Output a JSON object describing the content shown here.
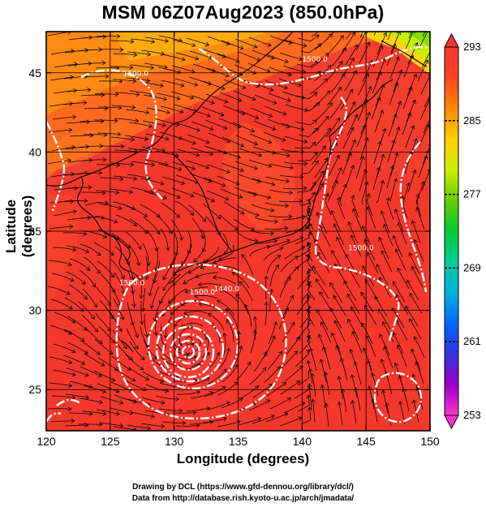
{
  "title": "MSM 06Z07Aug2023 (850.0hPa)",
  "x_axis": {
    "label": "Longitude (degrees)",
    "ticks": [
      "120",
      "125",
      "130",
      "135",
      "140",
      "145",
      "150"
    ],
    "range": [
      120,
      150
    ]
  },
  "y_axis": {
    "label": "Latitude  (degrees)",
    "ticks": [
      "25",
      "30",
      "35",
      "40",
      "45"
    ],
    "range": [
      22.4,
      47.6
    ]
  },
  "colorbar": {
    "max_label": "293",
    "min_label": "253",
    "tick_labels": [
      "285",
      "277",
      "269",
      "261"
    ],
    "range": [
      253,
      293
    ],
    "colors": [
      "#ff33cc",
      "#9900cc",
      "#3333dd",
      "#0066ff",
      "#00b3d9",
      "#00cc99",
      "#00cc33",
      "#66cc00",
      "#ccee00",
      "#ffcc00",
      "#ff8800",
      "#ff4422",
      "#ff3333"
    ]
  },
  "contour_labels": [
    {
      "text": "1500.0",
      "lon": 127.0,
      "lat": 44.8
    },
    {
      "text": "1500.0",
      "lon": 141.0,
      "lat": 45.7
    },
    {
      "text": "1500.0",
      "lon": 144.6,
      "lat": 33.8
    },
    {
      "text": "1500.0",
      "lon": 126.7,
      "lat": 31.6
    },
    {
      "text": "1500.0",
      "lon": 132.2,
      "lat": 31.0
    },
    {
      "text": "1440.0",
      "lon": 134.1,
      "lat": 31.2
    }
  ],
  "typhoon_center": {
    "lon": 131.2,
    "lat": 28.1
  },
  "credits": [
    "Drawing by DCL (https://www.gfd-dennou.org/library/dcl/)",
    "Data from http://database.rish.kyoto-u.ac.jp/arch/jmadata/"
  ]
}
